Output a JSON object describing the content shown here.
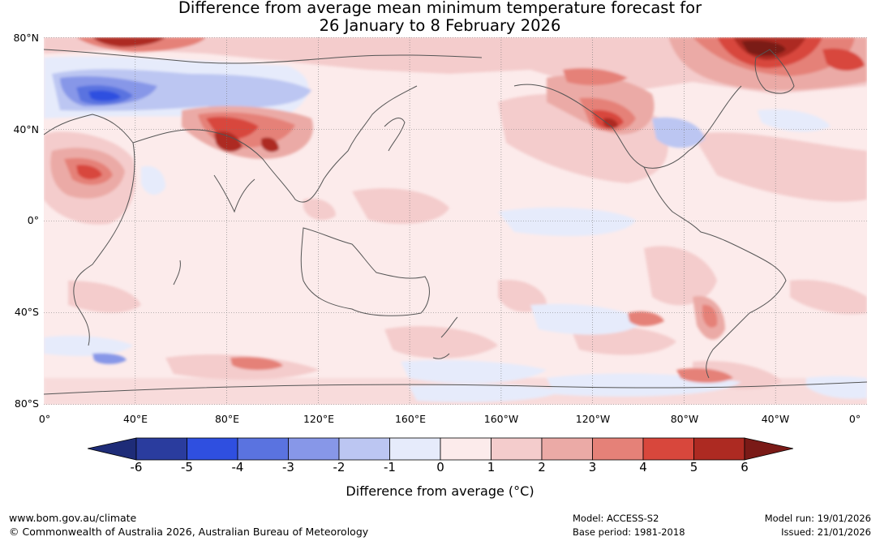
{
  "title_line1": "Difference from average mean minimum temperature forecast for",
  "title_line2": "26 January to 8 February 2026",
  "lat_labels": [
    "80°N",
    "40°N",
    "0°",
    "40°S",
    "80°S"
  ],
  "lon_labels": [
    "0°",
    "40°E",
    "80°E",
    "120°E",
    "160°E",
    "160°W",
    "120°W",
    "80°W",
    "40°W",
    "0°"
  ],
  "colorbar": {
    "ticks": [
      "-6",
      "-5",
      "-4",
      "-3",
      "-2",
      "-1",
      "0",
      "1",
      "2",
      "3",
      "4",
      "5",
      "6"
    ],
    "colors": [
      "#2a3c9e",
      "#2f4fe0",
      "#5a73e0",
      "#8797e8",
      "#bcc6f2",
      "#e6ebfb",
      "#fcebeb",
      "#f4cccc",
      "#ebaaa6",
      "#e58178",
      "#d8473c",
      "#ad2a22"
    ],
    "under_color": "#1e2c78",
    "over_color": "#7a1a17",
    "label": "Difference from average (",
    "label_unit": "°C",
    "label_close": ")"
  },
  "footer": {
    "website": "www.bom.gov.au/climate",
    "copyright": "© Commonwealth of Australia 2026, Australian Bureau of Meteorology",
    "model": "Model: ACCESS-S2",
    "base_period": "Base period: 1981-2018",
    "model_run": "Model run: 19/01/2026",
    "issued": "Issued: 21/01/2026"
  }
}
